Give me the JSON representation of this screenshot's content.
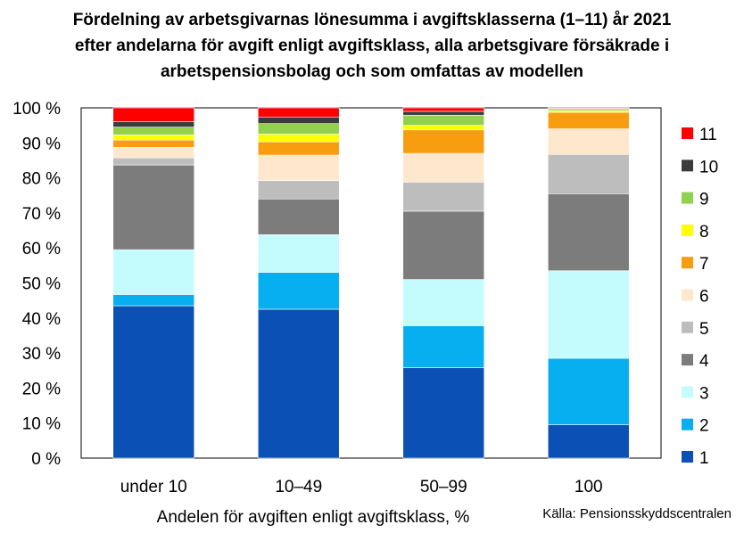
{
  "chart_data": {
    "type": "bar",
    "stacked": true,
    "title_lines": [
      "Fördelning av arbetsgivarnas lönesumma i avgiftsklasserna (1–11) år 2021",
      "efter andelarna för avgift enligt avgiftsklass, alla arbetsgivare försäkrade i",
      "arbetspensionsbolag och som omfattas av modellen"
    ],
    "xlabel": "Andelen för avgiften enligt avgiftsklass, %",
    "ylabel": "",
    "ylim": [
      0,
      100
    ],
    "yticks": [
      "0 %",
      "10 %",
      "20 %",
      "30 %",
      "40 %",
      "50 %",
      "60 %",
      "70 %",
      "80 %",
      "90 %",
      "100 %"
    ],
    "categories": [
      "under 10",
      "10–49",
      "50–99",
      "100"
    ],
    "grid": false,
    "legend_position": "right",
    "series": [
      {
        "name": "1",
        "color": "#0b50b4",
        "values": [
          43.5,
          42.5,
          25.8,
          9.5
        ]
      },
      {
        "name": "2",
        "color": "#07aef0",
        "values": [
          3.2,
          10.5,
          12.0,
          19.0
        ]
      },
      {
        "name": "3",
        "color": "#c4fbfd",
        "values": [
          12.8,
          10.8,
          13.2,
          25.0
        ]
      },
      {
        "name": "4",
        "color": "#7c7c7c",
        "values": [
          24.2,
          10.2,
          19.5,
          22.0
        ]
      },
      {
        "name": "5",
        "color": "#bdbdbd",
        "values": [
          2.0,
          5.2,
          8.3,
          11.2
        ]
      },
      {
        "name": "6",
        "color": "#fde8ce",
        "values": [
          3.0,
          7.3,
          8.2,
          7.3
        ]
      },
      {
        "name": "7",
        "color": "#f89c10",
        "values": [
          2.1,
          3.8,
          6.7,
          4.7
        ]
      },
      {
        "name": "8",
        "color": "#ffff00",
        "values": [
          1.5,
          2.2,
          1.3,
          0.5
        ]
      },
      {
        "name": "9",
        "color": "#92d050",
        "values": [
          2.2,
          3.0,
          2.9,
          0.4
        ]
      },
      {
        "name": "10",
        "color": "#3b3b3b",
        "values": [
          1.6,
          1.9,
          1.1,
          0.2
        ]
      },
      {
        "name": "11",
        "color": "#fe0000",
        "values": [
          3.9,
          2.6,
          1.0,
          0.2
        ]
      }
    ]
  },
  "source": "Källa: Pensionsskyddscentralen"
}
